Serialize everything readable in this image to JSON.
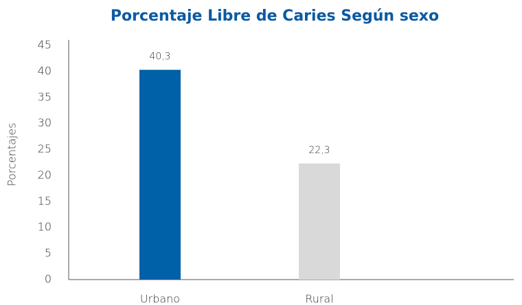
{
  "chart_data": {
    "type": "bar",
    "title": "Porcentaje Libre de Caries Según sexo",
    "y_label": "Porcentajes",
    "categories": [
      "Urbano",
      "Rural"
    ],
    "values": [
      40.3,
      22.3
    ],
    "value_labels": [
      "40,3",
      "22,3"
    ],
    "colors": [
      "#0060a8",
      "#d9d9d9"
    ],
    "ylim": [
      0,
      45
    ],
    "yticks": [
      0,
      5,
      10,
      15,
      20,
      25,
      30,
      35,
      40,
      45
    ],
    "grid": false
  }
}
